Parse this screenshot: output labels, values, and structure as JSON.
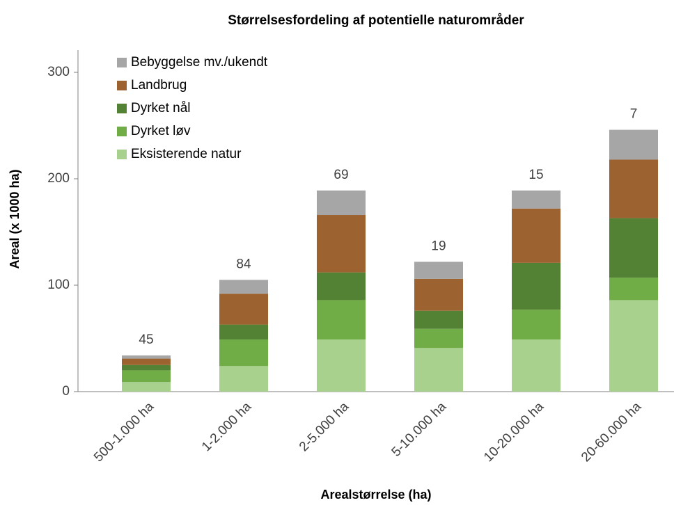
{
  "chart_data": {
    "type": "stacked_bar",
    "title": "Størrelsesfordeling af potentielle naturområder",
    "x_label": "Arealstørrelse (ha)",
    "y_label": "Areal (x 1000 ha)",
    "categories": [
      "500-1.000 ha",
      "1-2.000 ha",
      "2-5.000 ha",
      "5-10.000 ha",
      "10-20.000 ha",
      "20-60.000 ha"
    ],
    "series": [
      {
        "name": "Eksisterende natur",
        "color": "#a9d18e",
        "values": [
          9,
          24,
          49,
          41,
          49,
          86
        ]
      },
      {
        "name": "Dyrket løv",
        "color": "#70ad47",
        "values": [
          11,
          25,
          37,
          18,
          28,
          21
        ]
      },
      {
        "name": "Dyrket nål",
        "color": "#548235",
        "values": [
          5,
          14,
          26,
          17,
          44,
          56
        ]
      },
      {
        "name": "Landbrug",
        "color": "#9c6230",
        "values": [
          6,
          29,
          54,
          30,
          51,
          55
        ]
      },
      {
        "name": "Bebyggelse mv./ukendt",
        "color": "#a6a6a6",
        "values": [
          3,
          13,
          23,
          16,
          17,
          28
        ]
      }
    ],
    "bar_labels": [
      45,
      84,
      69,
      19,
      15,
      7
    ],
    "ylim": [
      0,
      300
    ],
    "yticks": [
      0,
      100,
      200,
      300
    ],
    "legend": "upper left"
  }
}
